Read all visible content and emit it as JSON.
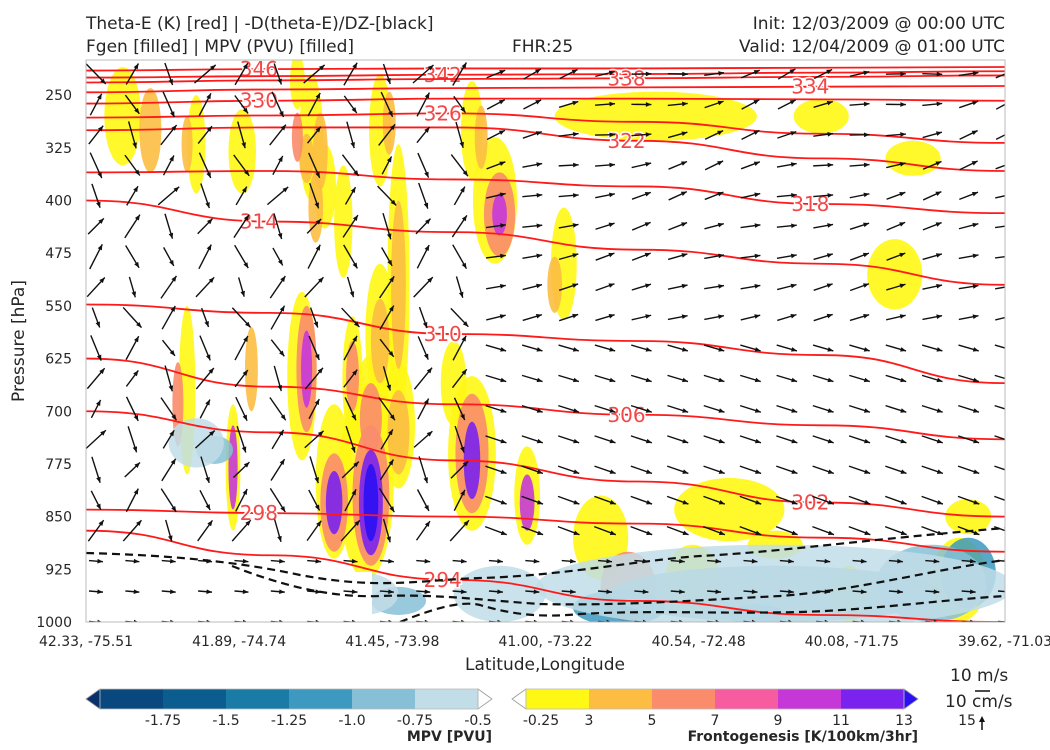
{
  "header": {
    "title_left_1": "Theta-E (K) [red] | -D(theta-E)/DZ-[black]",
    "title_left_2": "Fgen [filled] | MPV (PVU) [filled]",
    "fhr": "FHR:25",
    "init": "Init: 12/03/2009 @ 00:00 UTC",
    "valid": "Valid: 12/04/2009 @ 01:00 UTC"
  },
  "chart_data": {
    "type": "cross-section",
    "xlabel": "Latitude,Longitude",
    "ylabel": "Pressure [hPa]",
    "ylim": [
      1000,
      200
    ],
    "y_ticks": [
      250,
      325,
      400,
      475,
      550,
      625,
      700,
      775,
      850,
      925,
      1000
    ],
    "x_ticks": [
      "42.33, -75.51",
      "41.89, -74.74",
      "41.45, -73.98",
      "41.00, -73.22",
      "40.54, -72.48",
      "40.08, -71.75",
      "39.62, -71.03"
    ],
    "theta_e_contours": [
      {
        "label": "346",
        "p": [
          215,
          213,
          212,
          212,
          211,
          210
        ]
      },
      {
        "label": "342",
        "p": [
          225,
          223,
          221,
          220,
          218,
          216
        ]
      },
      {
        "label": "338",
        "p": [
          232,
          229,
          227,
          226,
          224,
          222
        ]
      },
      {
        "label": "334",
        "p": [
          246,
          242,
          240,
          239,
          238,
          237
        ]
      },
      {
        "label": "330",
        "p": [
          262,
          258,
          255,
          255,
          256,
          258
        ]
      },
      {
        "label": "326",
        "p": [
          282,
          279,
          276,
          288,
          305,
          318
        ]
      },
      {
        "label": "322",
        "p": [
          300,
          296,
          296,
          315,
          340,
          358
        ]
      },
      {
        "label": "318",
        "p": [
          360,
          358,
          370,
          380,
          405,
          418
        ]
      },
      {
        "label": "314",
        "p": [
          400,
          430,
          445,
          470,
          490,
          520
        ]
      },
      {
        "label": "310",
        "p": [
          548,
          560,
          590,
          600,
          620,
          660
        ]
      },
      {
        "label": "306",
        "p": [
          625,
          665,
          690,
          705,
          720,
          740
        ]
      },
      {
        "label": "302",
        "p": [
          700,
          730,
          770,
          800,
          830,
          850
        ]
      },
      {
        "label": "298",
        "p": [
          840,
          845,
          850,
          860,
          880,
          900
        ]
      },
      {
        "label": "294",
        "p": [
          870,
          905,
          940,
          970,
          990,
          1000
        ]
      }
    ],
    "mpv_colorbar": {
      "label": "MPV [PVU]",
      "ticks": [
        "-1.75",
        "-1.5",
        "-1.25",
        "-1.0",
        "-0.75",
        "-0.5",
        "-0.25"
      ],
      "colors": [
        "#08306b",
        "#08487f",
        "#0c5d8f",
        "#1a7ba6",
        "#3d99c0",
        "#86bfd6",
        "#c1dde7",
        "#ffffff"
      ]
    },
    "fgen_colorbar": {
      "label": "Frontogenesis [K/100km/3hr]",
      "ticks": [
        "3",
        "5",
        "7",
        "9",
        "11",
        "13",
        "15"
      ],
      "colors": [
        "#ffffff",
        "#fff714",
        "#fcbd42",
        "#fa8c6c",
        "#f75ba0",
        "#c637d8",
        "#7a22ee",
        "#2b10f3"
      ]
    },
    "wind_key": {
      "h_label": "10 m/s",
      "v_label": "10 cm/s"
    }
  }
}
